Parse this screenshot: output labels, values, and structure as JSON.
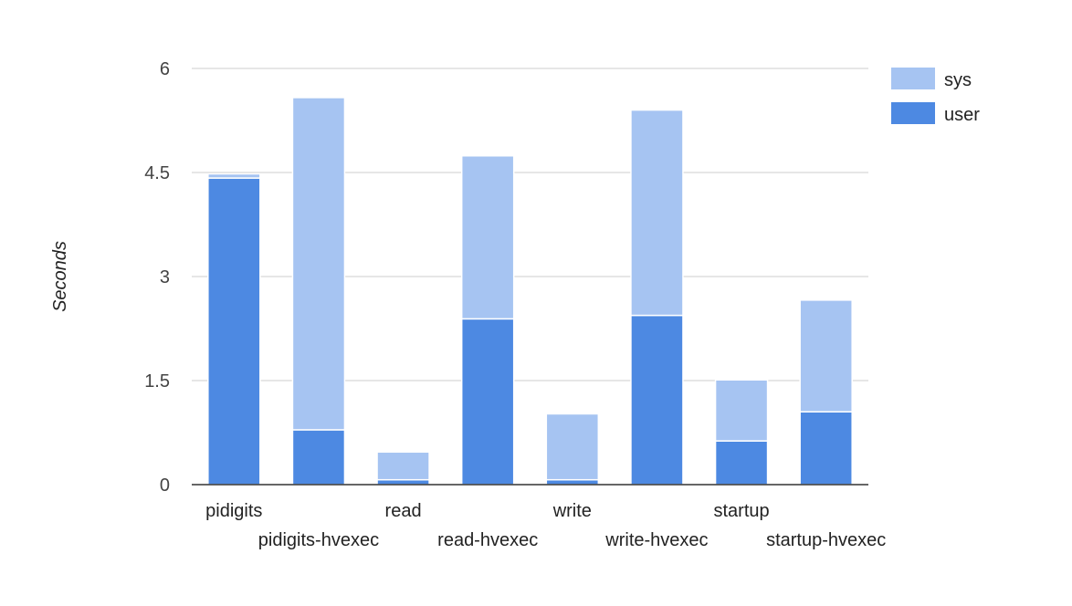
{
  "chart_data": {
    "type": "bar",
    "stacked": true,
    "categories": [
      "pidigits",
      "pidigits-hvexec",
      "read",
      "read-hvexec",
      "write",
      "write-hvexec",
      "startup",
      "startup-hvexec"
    ],
    "series": [
      {
        "name": "user",
        "color": "#4d89e2",
        "values": [
          4.42,
          0.79,
          0.07,
          2.39,
          0.07,
          2.44,
          0.63,
          1.05
        ]
      },
      {
        "name": "sys",
        "color": "#a6c4f2",
        "values": [
          0.06,
          4.79,
          0.4,
          2.35,
          0.95,
          2.96,
          0.88,
          1.61
        ]
      }
    ],
    "xlabel": "",
    "ylabel": "Seconds",
    "ylim": [
      0,
      6
    ],
    "yticks": [
      "0",
      "1.5",
      "3",
      "4.5",
      "6"
    ],
    "grid": true,
    "legend_position": "right",
    "legend": [
      {
        "name": "sys",
        "color": "#a6c4f2"
      },
      {
        "name": "user",
        "color": "#4d89e2"
      }
    ]
  }
}
